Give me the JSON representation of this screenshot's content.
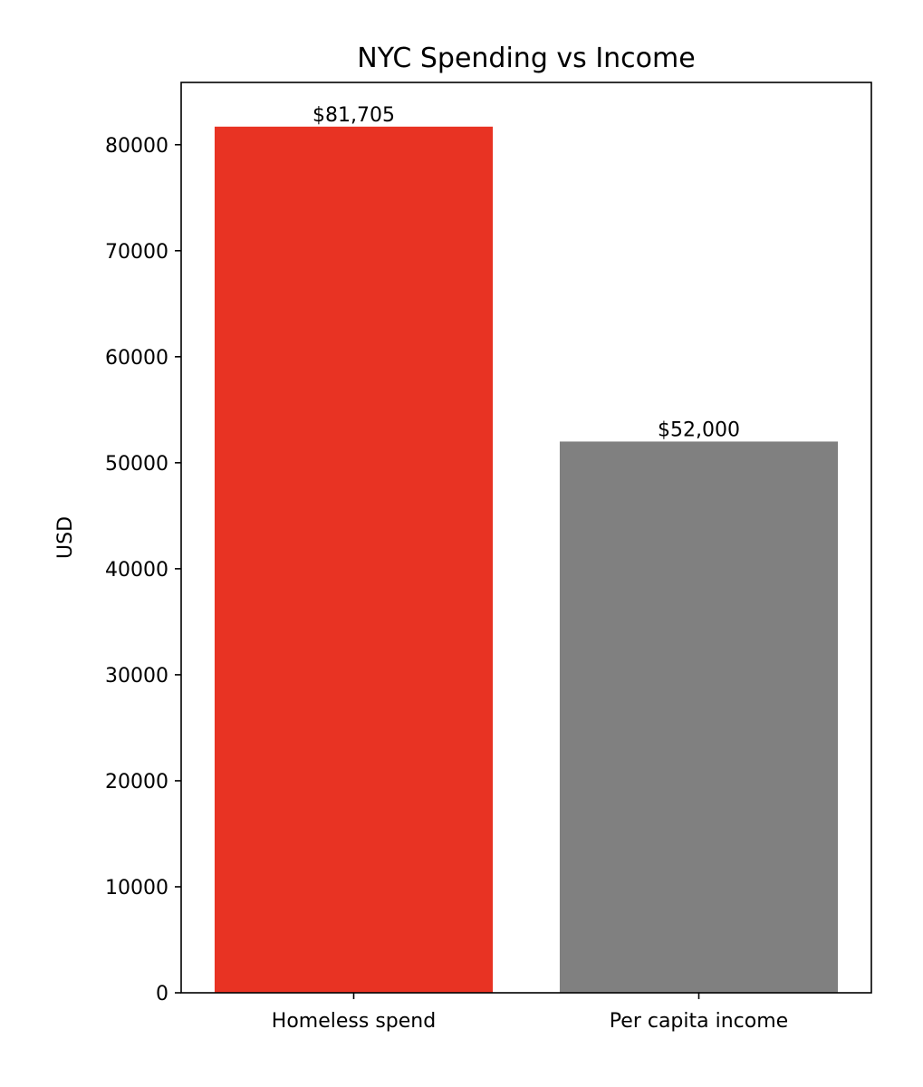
{
  "chart_data": {
    "type": "bar",
    "title": "NYC Spending vs Income",
    "xlabel": "",
    "ylabel": "USD",
    "categories": [
      "Homeless spend",
      "Per capita income"
    ],
    "values": [
      81705,
      52000
    ],
    "data_labels": [
      "$81,705",
      "$52,000"
    ],
    "colors": [
      "#e83323",
      "#808080"
    ],
    "ylim": [
      0,
      85875
    ],
    "yticks": [
      0,
      10000,
      20000,
      30000,
      40000,
      50000,
      60000,
      70000,
      80000
    ],
    "ytick_labels": [
      "0",
      "10000",
      "20000",
      "30000",
      "40000",
      "50000",
      "60000",
      "70000",
      "80000"
    ],
    "grid": false,
    "legend": "none"
  }
}
